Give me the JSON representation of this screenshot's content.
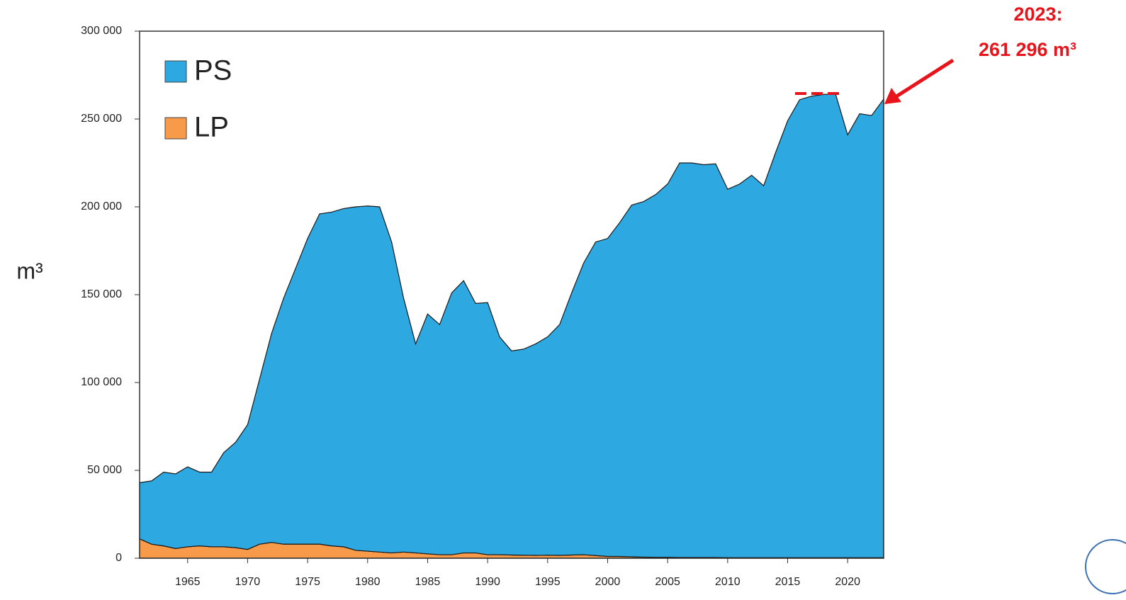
{
  "chart_data": {
    "type": "stacked_area",
    "y_label": "m³",
    "annotations": [
      "2023:",
      "261 296 m³"
    ],
    "x": [
      1961,
      1962,
      1963,
      1964,
      1965,
      1966,
      1967,
      1968,
      1969,
      1970,
      1971,
      1972,
      1973,
      1974,
      1975,
      1976,
      1977,
      1978,
      1979,
      1980,
      1981,
      1982,
      1983,
      1984,
      1985,
      1986,
      1987,
      1988,
      1989,
      1990,
      1991,
      1992,
      1993,
      1994,
      1995,
      1996,
      1997,
      1998,
      1999,
      2000,
      2001,
      2002,
      2003,
      2004,
      2005,
      2006,
      2007,
      2008,
      2009,
      2010,
      2011,
      2012,
      2013,
      2014,
      2015,
      2016,
      2017,
      2018,
      2019,
      2020,
      2021,
      2022,
      2023
    ],
    "series": [
      {
        "name": "PS",
        "color": "#2ea8e0",
        "values": [
          32000,
          36000,
          42000,
          42500,
          45500,
          42000,
          42500,
          53500,
          60000,
          71000,
          94000,
          119000,
          140000,
          157000,
          174000,
          188000,
          190000,
          192500,
          195500,
          196500,
          196500,
          177000,
          144500,
          119000,
          136500,
          131000,
          149000,
          155000,
          142000,
          143500,
          124000,
          116200,
          117300,
          120400,
          124300,
          131400,
          149200,
          166000,
          178500,
          181000,
          190000,
          200200,
          202400,
          206500,
          212500,
          224600,
          224600,
          223600,
          224100,
          209700,
          212700,
          217700,
          211700,
          230700,
          248700,
          260700,
          262700,
          263700,
          263700,
          240700,
          252700,
          251700,
          260996
        ]
      },
      {
        "name": "LP",
        "color": "#f79a4a",
        "values": [
          11000,
          8000,
          7000,
          5500,
          6500,
          7000,
          6500,
          6500,
          6000,
          5000,
          8000,
          9000,
          8000,
          8000,
          8000,
          8000,
          7000,
          6500,
          4500,
          4000,
          3500,
          3000,
          3500,
          3000,
          2500,
          2000,
          2000,
          3000,
          3000,
          2000,
          2000,
          1800,
          1700,
          1600,
          1700,
          1600,
          1800,
          2000,
          1500,
          1000,
          1000,
          800,
          600,
          500,
          500,
          400,
          400,
          400,
          400,
          300,
          300,
          300,
          300,
          300,
          300,
          300,
          300,
          300,
          300,
          300,
          300,
          300,
          300
        ]
      }
    ],
    "xlim": [
      1961,
      2023
    ],
    "xticks": [
      1965,
      1970,
      1975,
      1980,
      1985,
      1990,
      1995,
      2000,
      2005,
      2010,
      2015,
      2020
    ],
    "ylim": [
      0,
      300000
    ],
    "yticks": [
      {
        "value": 0,
        "label": "0"
      },
      {
        "value": 50000,
        "label": "50 000"
      },
      {
        "value": 100000,
        "label": "100 000"
      },
      {
        "value": 150000,
        "label": "150 000"
      },
      {
        "value": 200000,
        "label": "200 000"
      },
      {
        "value": 250000,
        "label": "250 000"
      },
      {
        "value": 300000,
        "label": "300 000"
      }
    ],
    "legend": "upper left"
  }
}
